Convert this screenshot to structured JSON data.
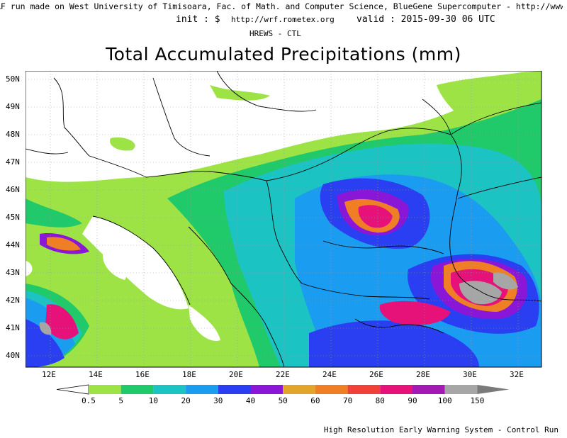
{
  "header": {
    "credit": "RF run made on West University of Timisoara, Fac. of Math. and Computer Science, BlueGene Supercomputer - http://www.hpc.uvt.ro",
    "init_label": "init : $",
    "url": "http://wrf.rometex.org",
    "valid_label": "valid : 2015-09-30  06 UTC",
    "model": "HREWS - CTL"
  },
  "title": "Total Accumulated Precipitations (mm)",
  "footer": "High Resolution Early Warning System - Control Run",
  "map": {
    "lat_labels": [
      "50N",
      "49N",
      "48N",
      "47N",
      "46N",
      "45N",
      "44N",
      "43N",
      "42N",
      "41N",
      "40N"
    ],
    "lon_labels": [
      "12E",
      "14E",
      "16E",
      "18E",
      "20E",
      "22E",
      "24E",
      "26E",
      "28E",
      "30E",
      "32E"
    ]
  },
  "legend": {
    "labels": [
      "0.5",
      "5",
      "10",
      "20",
      "30",
      "40",
      "50",
      "60",
      "70",
      "80",
      "90",
      "100",
      "150"
    ],
    "colors": [
      "#9ee346",
      "#20c96a",
      "#1cc3c3",
      "#1a9cf0",
      "#2b3ff2",
      "#8a16d8",
      "#e3a42b",
      "#f07e24",
      "#f04038",
      "#e6127a",
      "#a418b4",
      "#a6a6a6"
    ]
  }
}
